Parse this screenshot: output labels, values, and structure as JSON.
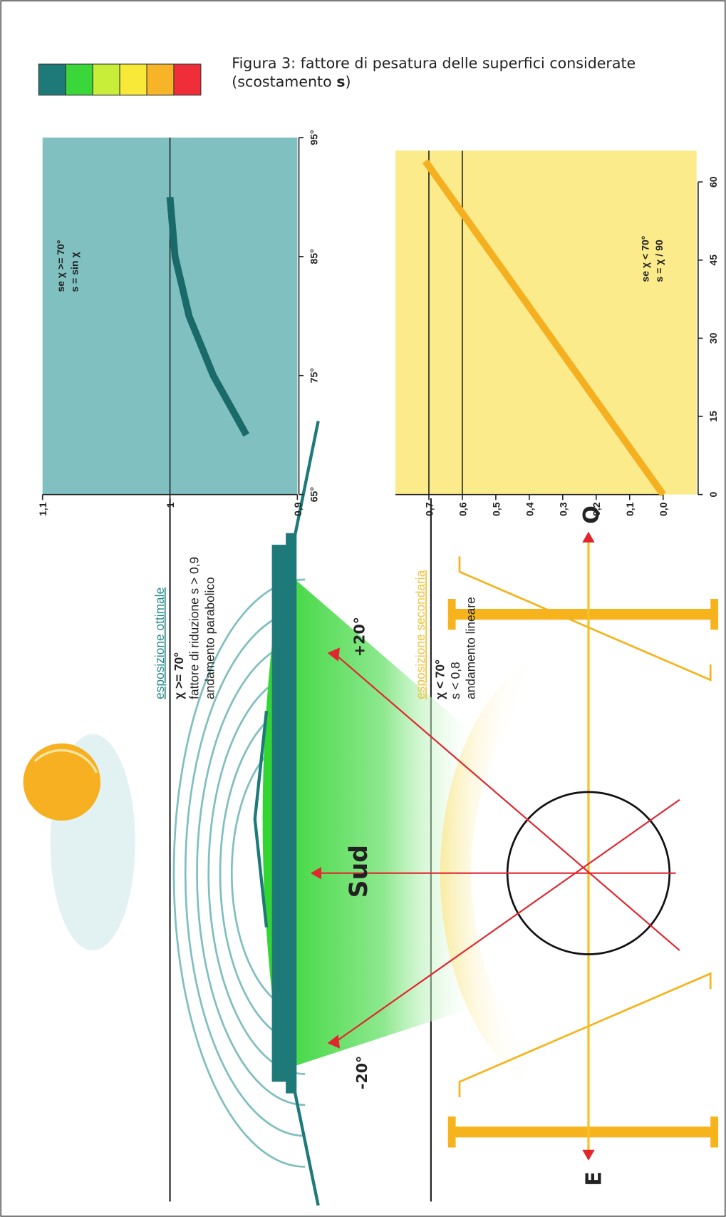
{
  "caption": [
    "Figura 3: fattore di pesatura delle superfici considerate",
    "(scostamento ",
    "s",
    ")"
  ],
  "scale_colors": [
    "#1e7a78",
    "#3ad63a",
    "#c8ee3a",
    "#f8e838",
    "#f8b428",
    "#f02e3a"
  ],
  "sections": [
    {
      "title": "esposizione ottimale",
      "color": "#2a8a8a",
      "lines": [
        "χ >= 70°",
        "fattore di riduzione s > 0,9",
        "andamento parabolico"
      ]
    },
    {
      "title": "esposizione secondaria",
      "color": "#f0c440",
      "lines": [
        "χ < 70°",
        "s < 0,8",
        "andamento lineare"
      ]
    }
  ],
  "diagram_labels": {
    "south": "Sud",
    "plus": "+20°",
    "minus": "-20°",
    "west": "O",
    "east": "E"
  },
  "chart_data": [
    {
      "type": "line",
      "annotations": [
        "se χ >= 70°",
        "s = sin χ"
      ],
      "background": "#80c0c0",
      "color": "#1a6a6a",
      "x": [
        70,
        75,
        80,
        85,
        90
      ],
      "values": [
        0.94,
        0.966,
        0.985,
        0.996,
        1.0
      ],
      "reference_lines": [
        1
      ],
      "xlim": [
        65,
        95
      ],
      "xticks": [
        {
          "value": 65,
          "label": "65°"
        },
        {
          "value": 75,
          "label": "75°"
        },
        {
          "value": 85,
          "label": "85°"
        },
        {
          "value": 95,
          "label": "95°"
        }
      ],
      "ylim": [
        0.9,
        1.1
      ],
      "yticks": [
        {
          "value": 0.9,
          "label": "0,9"
        },
        1,
        {
          "value": 1.1,
          "label": "1,1"
        }
      ]
    },
    {
      "type": "line",
      "annotations": [
        "se χ < 70°",
        "s = χ / 90"
      ],
      "background": "#fbeb8a",
      "color": "#f5b021",
      "x": [
        0,
        64
      ],
      "values": [
        0,
        0.711
      ],
      "reference_lines": [
        0.7,
        0.6
      ],
      "xlim": [
        0,
        66
      ],
      "xticks": [
        0,
        15,
        30,
        45,
        60
      ],
      "ylim": [
        -0.1,
        0.8
      ],
      "yticks": [
        {
          "value": 0,
          "label": "0,0"
        },
        {
          "value": 0.1,
          "label": "0,1"
        },
        {
          "value": 0.2,
          "label": "0,2"
        },
        {
          "value": 0.3,
          "label": "0,3"
        },
        {
          "value": 0.4,
          "label": "0,4"
        },
        {
          "value": 0.5,
          "label": "0,5"
        },
        {
          "value": 0.6,
          "label": "0,6"
        },
        {
          "value": 0.7,
          "label": "0,7"
        }
      ]
    }
  ]
}
